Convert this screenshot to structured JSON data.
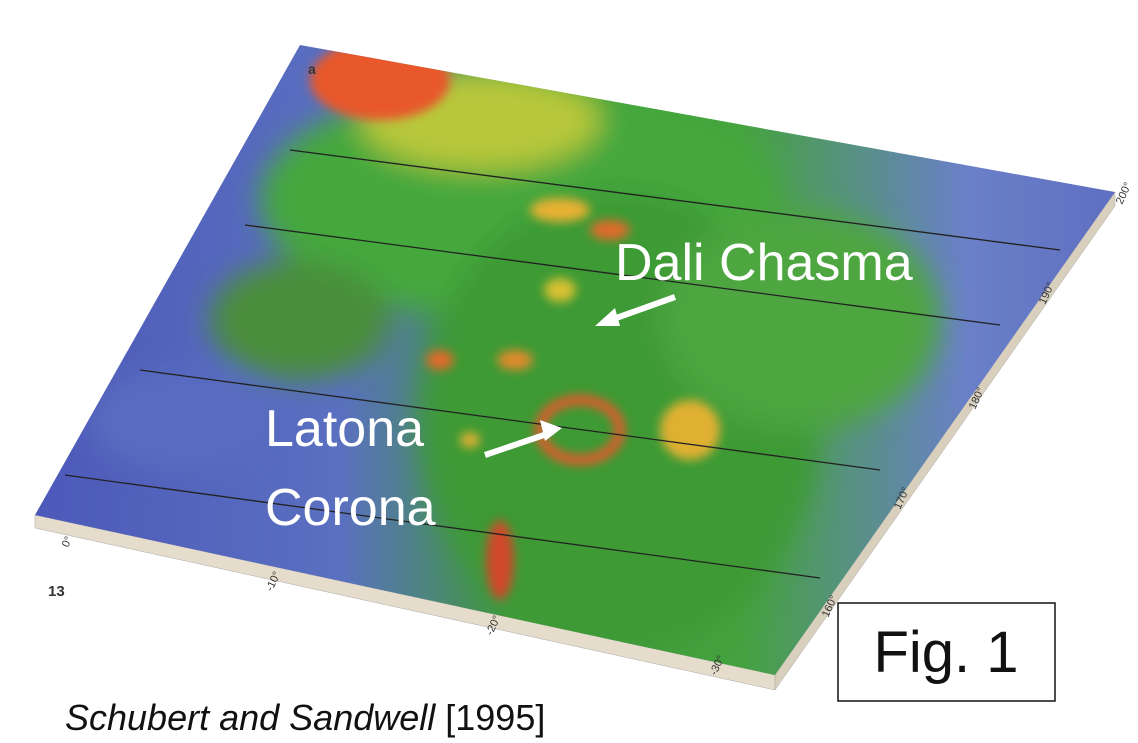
{
  "panel_label": "a",
  "figure_number": "13",
  "annotations": {
    "dali": "Dali Chasma",
    "latona_line1": "Latona",
    "latona_line2": "Corona"
  },
  "fig_label": "Fig. 1",
  "citation": {
    "authors": "Schubert and Sandwell",
    "year": "[1995]"
  },
  "bottom_edge_ticks": [
    "0°",
    "-10°",
    "-20°",
    "-30°"
  ],
  "right_edge_ticks": [
    "160°",
    "170°",
    "180°",
    "190°",
    "200°"
  ]
}
